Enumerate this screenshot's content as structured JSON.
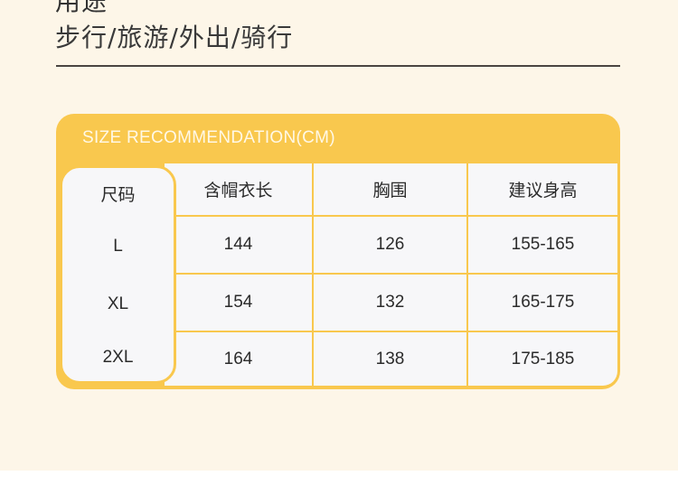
{
  "section": {
    "title_cut": "用途",
    "subtitle": "步行/旅游/外出/骑行"
  },
  "size_table": {
    "title": "SIZE RECOMMENDATION(CM)",
    "accent_color": "#f9c84e",
    "size_header": "尺码",
    "headers": [
      "含帽衣长",
      "胸围",
      "建议身高"
    ],
    "rows": [
      {
        "size": "L",
        "values": [
          "144",
          "126",
          "155-165"
        ]
      },
      {
        "size": "XL",
        "values": [
          "154",
          "132",
          "165-175"
        ]
      },
      {
        "size": "2XL",
        "values": [
          "164",
          "138",
          "175-185"
        ]
      }
    ]
  }
}
